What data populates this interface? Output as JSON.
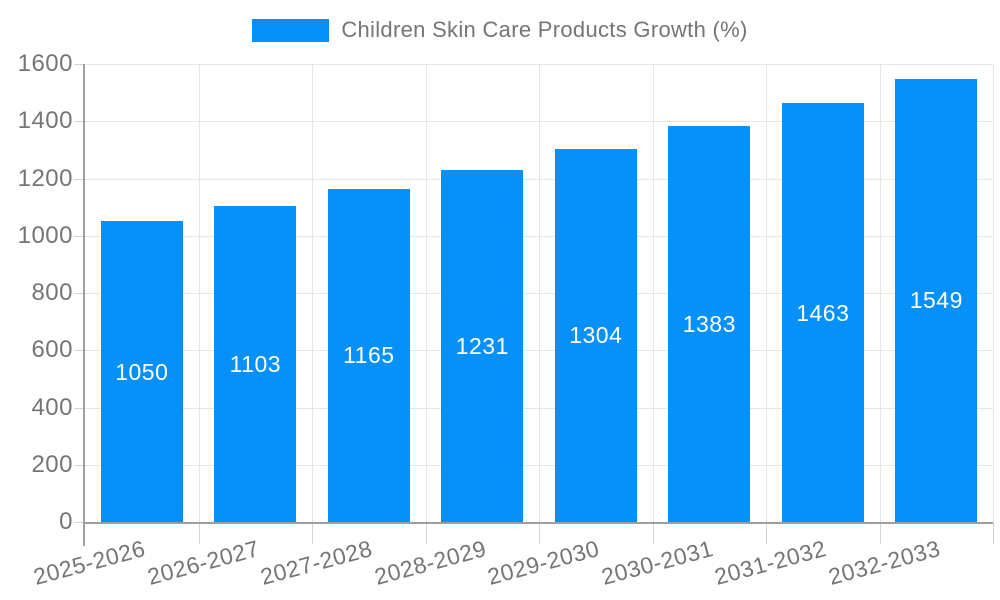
{
  "legend": {
    "items": [
      {
        "label": "Children Skin Care Products Growth (%)",
        "color": "#0590fa"
      }
    ]
  },
  "chart_data": {
    "type": "bar",
    "title": "Children Skin Care Products Growth (%)",
    "categories": [
      "2025-2026",
      "2026-2027",
      "2027-2028",
      "2028-2029",
      "2029-2030",
      "2030-2031",
      "2031-2032",
      "2032-2033"
    ],
    "values": [
      1050,
      1103,
      1165,
      1231,
      1304,
      1383,
      1463,
      1549
    ],
    "xlabel": "",
    "ylabel": "",
    "ylim": [
      0,
      1600
    ],
    "yticks": [
      0,
      200,
      400,
      600,
      800,
      1000,
      1200,
      1400,
      1600
    ],
    "grid": true,
    "legend_position": "top",
    "bar_color": "#0590fa",
    "value_label_color": "#ffffff",
    "axis_text_color": "#757575",
    "grid_color": "#e6e6e6",
    "tick_color": "#d4d4d4",
    "axis_line_color": "#9e9e9e"
  }
}
